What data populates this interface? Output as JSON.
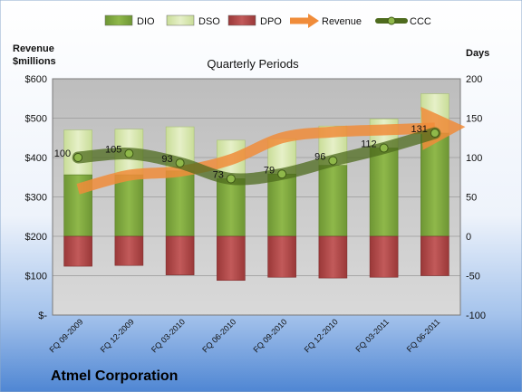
{
  "chart_data": {
    "type": "bar",
    "title": "Quarterly Periods",
    "company": "Atmel Corporation",
    "left_axis_label": [
      "Revenue",
      "$millions"
    ],
    "right_axis_label": "Days",
    "left_axis": {
      "min": 0,
      "max": 600,
      "step": 100,
      "ticks": [
        "$-",
        "$100",
        "$200",
        "$300",
        "$400",
        "$500",
        "$600"
      ]
    },
    "right_axis": {
      "min": -100,
      "max": 200,
      "step": 50,
      "ticks": [
        "-100",
        "-50",
        "0",
        "50",
        "100",
        "150",
        "200"
      ]
    },
    "categories": [
      "FQ 09-2009",
      "FQ 12-2009",
      "FQ 03-2010",
      "FQ 06-2010",
      "FQ 09-2010",
      "FQ 12-2010",
      "FQ 03-2011",
      "FQ 06-2011"
    ],
    "series": [
      {
        "name": "DIO",
        "kind": "stacked-bar-positive",
        "axis": "right",
        "values": [
          78,
          78,
          83,
          73,
          79,
          90,
          112,
          131
        ]
      },
      {
        "name": "DSO",
        "kind": "stacked-bar-positive",
        "axis": "right",
        "values": [
          57,
          58,
          56,
          49,
          45,
          50,
          37,
          50
        ]
      },
      {
        "name": "DPO",
        "kind": "bar-negative",
        "axis": "right",
        "values": [
          -38,
          -37,
          -49,
          -56,
          -52,
          -53,
          -52,
          -50
        ]
      },
      {
        "name": "Revenue",
        "kind": "line-arrow",
        "axis": "left",
        "values": [
          320,
          355,
          365,
          395,
          450,
          465,
          470,
          475
        ]
      },
      {
        "name": "CCC",
        "kind": "line-markers",
        "axis": "right",
        "values": [
          100,
          105,
          93,
          73,
          79,
          96,
          112,
          131
        ]
      }
    ],
    "ccc_labels": [
      "100",
      "105",
      "93",
      "73",
      "79",
      "96",
      "112",
      "131"
    ],
    "legend": [
      {
        "name": "DIO",
        "symbol": "bar"
      },
      {
        "name": "DSO",
        "symbol": "bar"
      },
      {
        "name": "DPO",
        "symbol": "bar"
      },
      {
        "name": "Revenue",
        "symbol": "arrow"
      },
      {
        "name": "CCC",
        "symbol": "line-marker"
      }
    ],
    "legend_position": "top",
    "colors": {
      "DIO": "#7ea33e",
      "DSO": "#d8e8b0",
      "DPO": "#b04a4a",
      "Revenue": "#f08c3a",
      "CCC": "#4e6b1e",
      "plot_bg": "#c4c4c4",
      "page_top": "#ffffff",
      "page_bottom": "#5a8fd6"
    },
    "grid": true
  }
}
